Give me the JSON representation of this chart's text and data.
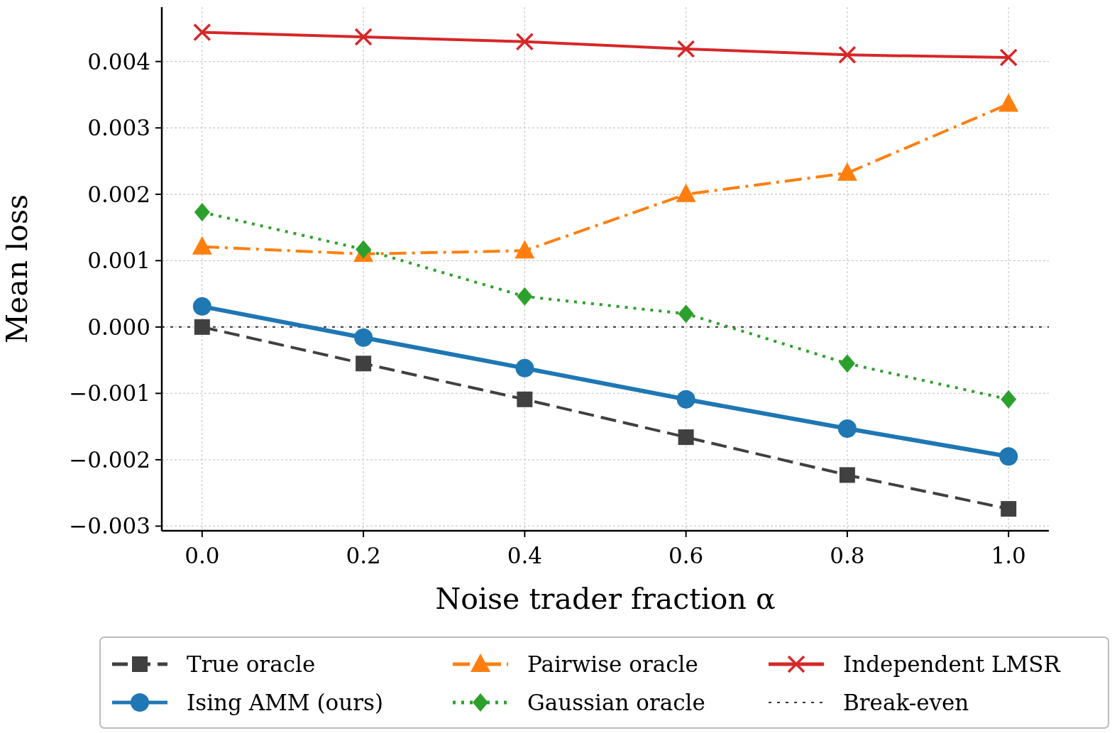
{
  "chart_data": {
    "type": "line",
    "xlabel": "Noise trader fraction α",
    "ylabel": "Mean loss",
    "x": [
      0,
      0.2,
      0.4,
      0.6,
      0.8,
      1.0
    ],
    "series": [
      {
        "name": "True oracle",
        "color": "#404040",
        "marker": "square",
        "line_style": "dashed",
        "values": [
          0.0,
          -0.00055,
          -0.00109,
          -0.00166,
          -0.00223,
          -0.00274
        ]
      },
      {
        "name": "Ising AMM (ours)",
        "color": "#1f77b4",
        "marker": "circle",
        "line_style": "solid",
        "values": [
          0.00031,
          -0.00016,
          -0.00062,
          -0.00109,
          -0.00153,
          -0.00195
        ]
      },
      {
        "name": "Pairwise oracle",
        "color": "#ff7f0e",
        "marker": "triangle",
        "line_style": "dashdot",
        "values": [
          0.00121,
          0.0011,
          0.00115,
          0.002,
          0.00232,
          0.00336
        ]
      },
      {
        "name": "Gaussian oracle",
        "color": "#2ca02c",
        "marker": "diamond",
        "line_style": "dotted",
        "values": [
          0.00173,
          0.00117,
          0.00046,
          0.0002,
          -0.00055,
          -0.00109
        ]
      },
      {
        "name": "Independent LMSR",
        "color": "#d62728",
        "marker": "cross",
        "line_style": "solid",
        "values": [
          0.00444,
          0.00437,
          0.0043,
          0.00419,
          0.0041,
          0.00406
        ]
      }
    ],
    "ref_lines": [
      {
        "axis": "y",
        "value": 0,
        "label": "Break-even",
        "color": "#333333",
        "line_style": "dotted"
      }
    ],
    "xlim": [
      -0.05,
      1.05
    ],
    "xticks": [
      {
        "value": 0,
        "label": "0.0"
      },
      0.2,
      0.4,
      0.6,
      0.8,
      {
        "value": 1,
        "label": "1.0"
      }
    ],
    "ylim": [
      -0.00307,
      0.00482
    ],
    "yticks": [
      {
        "value": -0.003,
        "label": "−0.003"
      },
      {
        "value": -0.002,
        "label": "−0.002"
      },
      {
        "value": -0.001,
        "label": "−0.001"
      },
      {
        "value": 0,
        "label": "0.000"
      },
      0.001,
      0.002,
      0.003,
      0.004
    ],
    "grid": true,
    "legend": "bottom"
  }
}
